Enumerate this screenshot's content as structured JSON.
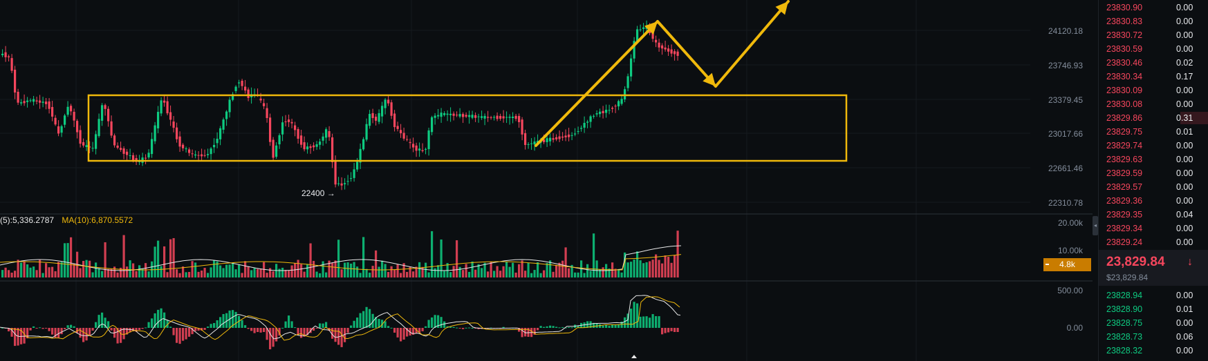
{
  "price_axis": [
    "24120.18",
    "23746.93",
    "23379.45",
    "23017.66",
    "22661.46",
    "22310.78"
  ],
  "volume_axis": [
    "20.00k",
    "10.00k"
  ],
  "macd_axis": [
    "500.00",
    "0.00"
  ],
  "volume_legend": {
    "ma5": "(5):5,336.2787",
    "ma10": "MA(10):6,870.5572"
  },
  "low_marker": "22400 →",
  "volume_tag": "4.8k",
  "colors": {
    "up": "#0ecb81",
    "down": "#f6465d",
    "annotation": "#f0b90b",
    "tag": "#c97c00",
    "bg": "#0b0e11"
  },
  "chart_data": {
    "type": "candlestick",
    "price_range": [
      22150,
      24400
    ],
    "annotations": [
      "consolidation-range-box",
      "arrow-up",
      "arrow-down-pullback",
      "arrow-up-continuation"
    ],
    "low_label": "22400"
  },
  "order_book": {
    "asks": [
      {
        "price": "23830.90",
        "amount": "0.00"
      },
      {
        "price": "23830.83",
        "amount": "0.00"
      },
      {
        "price": "23830.72",
        "amount": "0.00"
      },
      {
        "price": "23830.59",
        "amount": "0.00"
      },
      {
        "price": "23830.46",
        "amount": "0.02"
      },
      {
        "price": "23830.34",
        "amount": "0.17"
      },
      {
        "price": "23830.09",
        "amount": "0.00"
      },
      {
        "price": "23830.08",
        "amount": "0.00"
      },
      {
        "price": "23829.86",
        "amount": "0.31",
        "depth": 0.25
      },
      {
        "price": "23829.75",
        "amount": "0.01"
      },
      {
        "price": "23829.74",
        "amount": "0.00"
      },
      {
        "price": "23829.63",
        "amount": "0.00"
      },
      {
        "price": "23829.59",
        "amount": "0.00"
      },
      {
        "price": "23829.57",
        "amount": "0.00"
      },
      {
        "price": "23829.36",
        "amount": "0.00"
      },
      {
        "price": "23829.35",
        "amount": "0.04"
      },
      {
        "price": "23829.34",
        "amount": "0.00"
      },
      {
        "price": "23829.24",
        "amount": "0.00"
      }
    ],
    "last_price": "23,829.84",
    "last_price_arrow": "↓",
    "last_price_usd": "$23,829.84",
    "bids": [
      {
        "price": "23828.94",
        "amount": "0.00"
      },
      {
        "price": "23828.90",
        "amount": "0.01"
      },
      {
        "price": "23828.75",
        "amount": "0.00"
      },
      {
        "price": "23828.73",
        "amount": "0.06"
      },
      {
        "price": "23828.32",
        "amount": "0.00"
      }
    ]
  }
}
